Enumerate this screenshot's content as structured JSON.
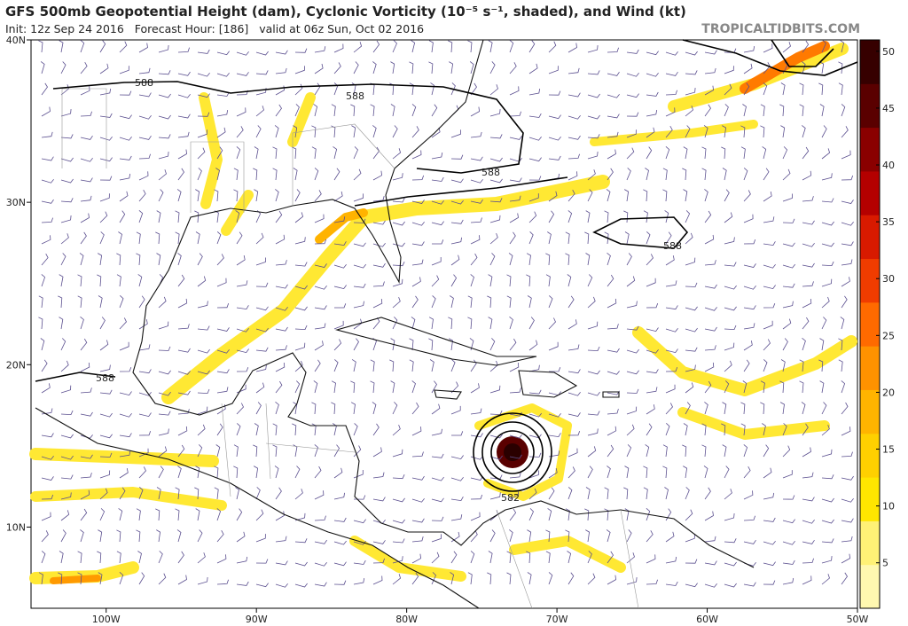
{
  "header": {
    "title": "GFS 500mb Geopotential Height (dam), Cyclonic Vorticity (10⁻⁵ s⁻¹, shaded), and Wind (kt)",
    "subtitle": "Init: 12z Sep 24 2016   Forecast Hour: [186]   valid at 06z Sun, Oct 02 2016",
    "credit": "TROPICALTIDBITS.COM"
  },
  "map": {
    "xlim": [
      -105,
      -50
    ],
    "ylim": [
      5,
      40
    ],
    "xticks": [
      {
        "value": -100,
        "label": "100W"
      },
      {
        "value": -90,
        "label": "90W"
      },
      {
        "value": -80,
        "label": "80W"
      },
      {
        "value": -70,
        "label": "70W"
      },
      {
        "value": -60,
        "label": "60W"
      },
      {
        "value": -50,
        "label": "50W"
      }
    ],
    "yticks": [
      {
        "value": 40,
        "label": "40N"
      },
      {
        "value": 30,
        "label": "30N"
      },
      {
        "value": 20,
        "label": "20N"
      },
      {
        "value": 10,
        "label": "10N"
      }
    ],
    "contour_labels": [
      "588",
      "588",
      "588",
      "588",
      "588",
      "582"
    ]
  },
  "colorbar": {
    "range": [
      1,
      51
    ],
    "ticks": [
      5,
      10,
      15,
      20,
      25,
      30,
      35,
      40,
      45,
      50
    ],
    "colors": [
      "#fff8b0",
      "#fff176",
      "#ffe600",
      "#ffd000",
      "#ffb400",
      "#ff9200",
      "#ff6a00",
      "#f03c00",
      "#d81a00",
      "#b40000",
      "#8a0000",
      "#5a0000",
      "#360000"
    ]
  }
}
